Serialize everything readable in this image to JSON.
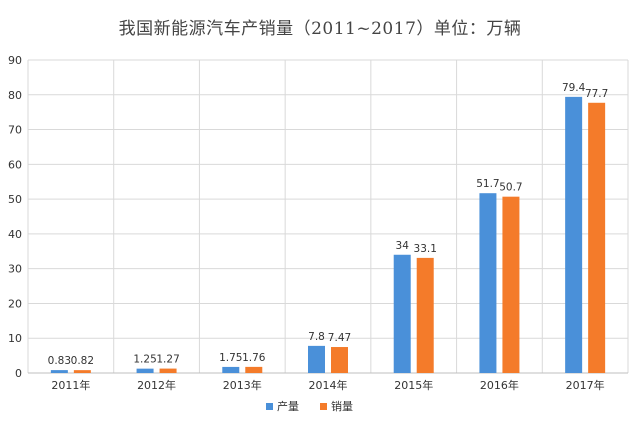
{
  "chart_data": {
    "type": "bar",
    "title": "我国新能源汽车产销量（2011~2017）单位：万辆",
    "categories": [
      "2011年",
      "2012年",
      "2013年",
      "2014年",
      "2015年",
      "2016年",
      "2017年"
    ],
    "series": [
      {
        "name": "产量",
        "color": "#4A90D9",
        "values": [
          0.83,
          1.25,
          1.75,
          7.8,
          34,
          51.7,
          79.4
        ]
      },
      {
        "name": "销量",
        "color": "#F47B2A",
        "values": [
          0.82,
          1.27,
          1.76,
          7.47,
          33.1,
          50.7,
          77.7
        ]
      }
    ],
    "ylim": [
      0,
      90
    ],
    "yticks": [
      0,
      10,
      20,
      30,
      40,
      50,
      60,
      70,
      80,
      90
    ],
    "grid": true,
    "legend_position": "bottom"
  }
}
